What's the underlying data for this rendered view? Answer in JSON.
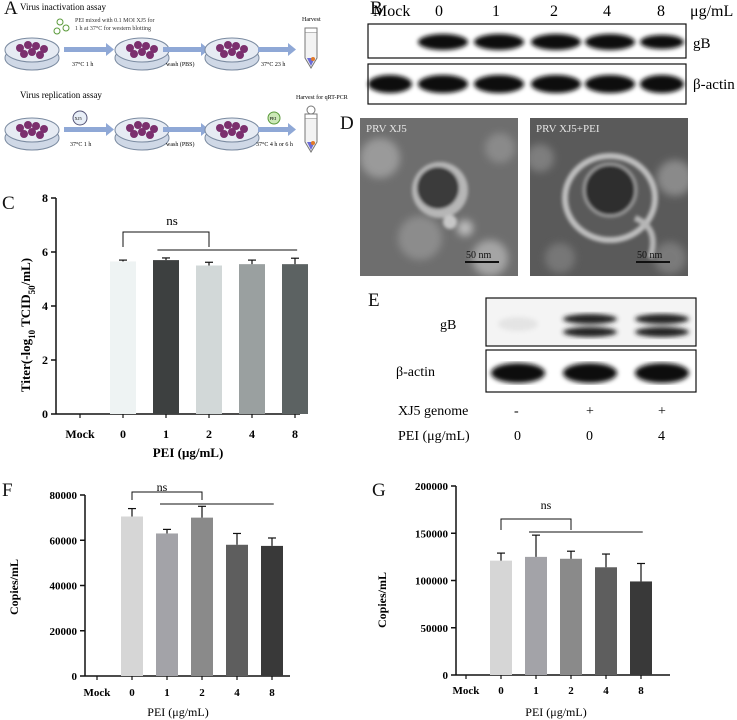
{
  "panels": {
    "A": {
      "letter": "A",
      "top_title": "Virus inactivation assay",
      "top_note_1": "PEI mixed with 0.1 MOI XJ5 for",
      "top_note_2": "1 h at 37°C for western blotting",
      "top_step1": "37°C 1 h",
      "top_step2": "wash (PBS)",
      "top_step3": "37°C 23 h",
      "top_harvest": "Harvest",
      "bottom_title": "Virus replication assay",
      "bottom_virus": "XJ5",
      "bottom_step1": "37°C 1 h",
      "bottom_step2": "wash (PBS)",
      "bottom_pei": "PEI",
      "bottom_step3": "37°C 4 h or 6 h",
      "bottom_harvest": "Harvest for qRT-PCR"
    },
    "B": {
      "letter": "B",
      "lanes": [
        "Mock",
        "0",
        "1",
        "2",
        "4",
        "8"
      ],
      "unit": "μg/mL",
      "rows": [
        "gB",
        "β-actin"
      ]
    },
    "D": {
      "letter": "D",
      "left_label": "PRV XJ5",
      "right_label": "PRV XJ5+PEI",
      "scale_left": "50 nm",
      "scale_right": "50 nm"
    },
    "E": {
      "letter": "E",
      "rows": [
        "gB",
        "β-actin"
      ],
      "genome_label": "XJ5 genome",
      "genome_values": [
        "-",
        "+",
        "+"
      ],
      "pei_label": "PEI (μg/mL)",
      "pei_values": [
        "0",
        "0",
        "4"
      ]
    },
    "C": {
      "letter": "C",
      "sig": "ns"
    },
    "F": {
      "letter": "F",
      "sig": "ns"
    },
    "G": {
      "letter": "G",
      "sig": "ns"
    }
  },
  "chart_data": [
    {
      "id": "C",
      "type": "bar",
      "categories": [
        "Mock",
        "0",
        "1",
        "2",
        "4",
        "8"
      ],
      "values": [
        0,
        5.65,
        5.7,
        5.5,
        5.55,
        5.55
      ],
      "errors": [
        0,
        0.05,
        0.08,
        0.12,
        0.15,
        0.22
      ],
      "colors": [
        "#ffffff",
        "#eef3f3",
        "#3d4040",
        "#d2d8d8",
        "#9aa0a0",
        "#5c6262"
      ],
      "ylabel": "Titer(-log10 TCID50/mL)",
      "ylabel_main": "Titer(-log",
      "ylabel_sub1": "10",
      "ylabel_mid": " TCID",
      "ylabel_sub2": "50",
      "ylabel_end": "/mL)",
      "xlabel": "PEI (μg/mL)",
      "ylim": [
        0,
        8
      ],
      "yticks": [
        "0",
        "2",
        "4",
        "6",
        "8"
      ]
    },
    {
      "id": "F",
      "type": "bar",
      "categories": [
        "Mock",
        "0",
        "1",
        "2",
        "4",
        "8"
      ],
      "values": [
        0,
        70500,
        63000,
        70000,
        58000,
        57500
      ],
      "errors": [
        0,
        3500,
        1800,
        5000,
        5000,
        3500
      ],
      "colors": [
        "#ffffff",
        "#d6d6d6",
        "#a3a3a8",
        "#8a8a8a",
        "#5e5e5e",
        "#393939"
      ],
      "ylabel": "Copies/mL",
      "xlabel": "PEI (μg/mL)",
      "ylim": [
        0,
        80000
      ],
      "yticks": [
        "0",
        "20000",
        "40000",
        "60000",
        "80000"
      ]
    },
    {
      "id": "G",
      "type": "bar",
      "categories": [
        "Mock",
        "0",
        "1",
        "2",
        "4",
        "8"
      ],
      "values": [
        0,
        121000,
        125000,
        123000,
        114000,
        99000
      ],
      "errors": [
        0,
        8000,
        23000,
        8000,
        14000,
        19000
      ],
      "colors": [
        "#ffffff",
        "#d6d6d6",
        "#a3a3a8",
        "#8a8a8a",
        "#5e5e5e",
        "#393939"
      ],
      "ylabel": "Copies/mL",
      "xlabel": "PEI (μg/mL)",
      "ylim": [
        0,
        200000
      ],
      "yticks": [
        "0",
        "50000",
        "100000",
        "150000",
        "200000"
      ]
    }
  ]
}
